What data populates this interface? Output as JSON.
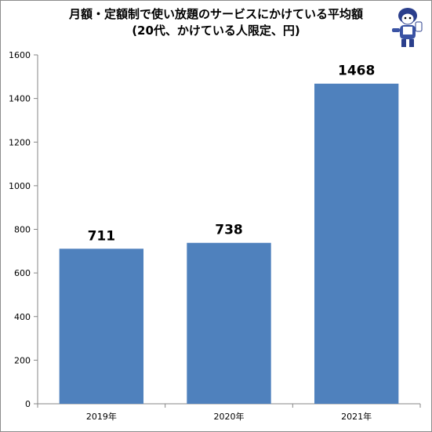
{
  "chart_data": {
    "type": "bar",
    "title": "月額・定額制で使い放題のサービスにかけている平均額",
    "subtitle": "(20代、かけている人限定、円)",
    "categories": [
      "2019年",
      "2020年",
      "2021年"
    ],
    "values": [
      711,
      738,
      1468
    ],
    "data_labels": [
      "711",
      "738",
      "1468"
    ],
    "ylim": [
      0,
      1600
    ],
    "yticks": [
      0,
      200,
      400,
      600,
      800,
      1000,
      1200,
      1400,
      1600
    ],
    "grid": false,
    "legend": "none",
    "bar_color": "#4f81bd",
    "xlabel": "",
    "ylabel": ""
  },
  "mascot": {
    "icon": "mascot-character-icon"
  }
}
